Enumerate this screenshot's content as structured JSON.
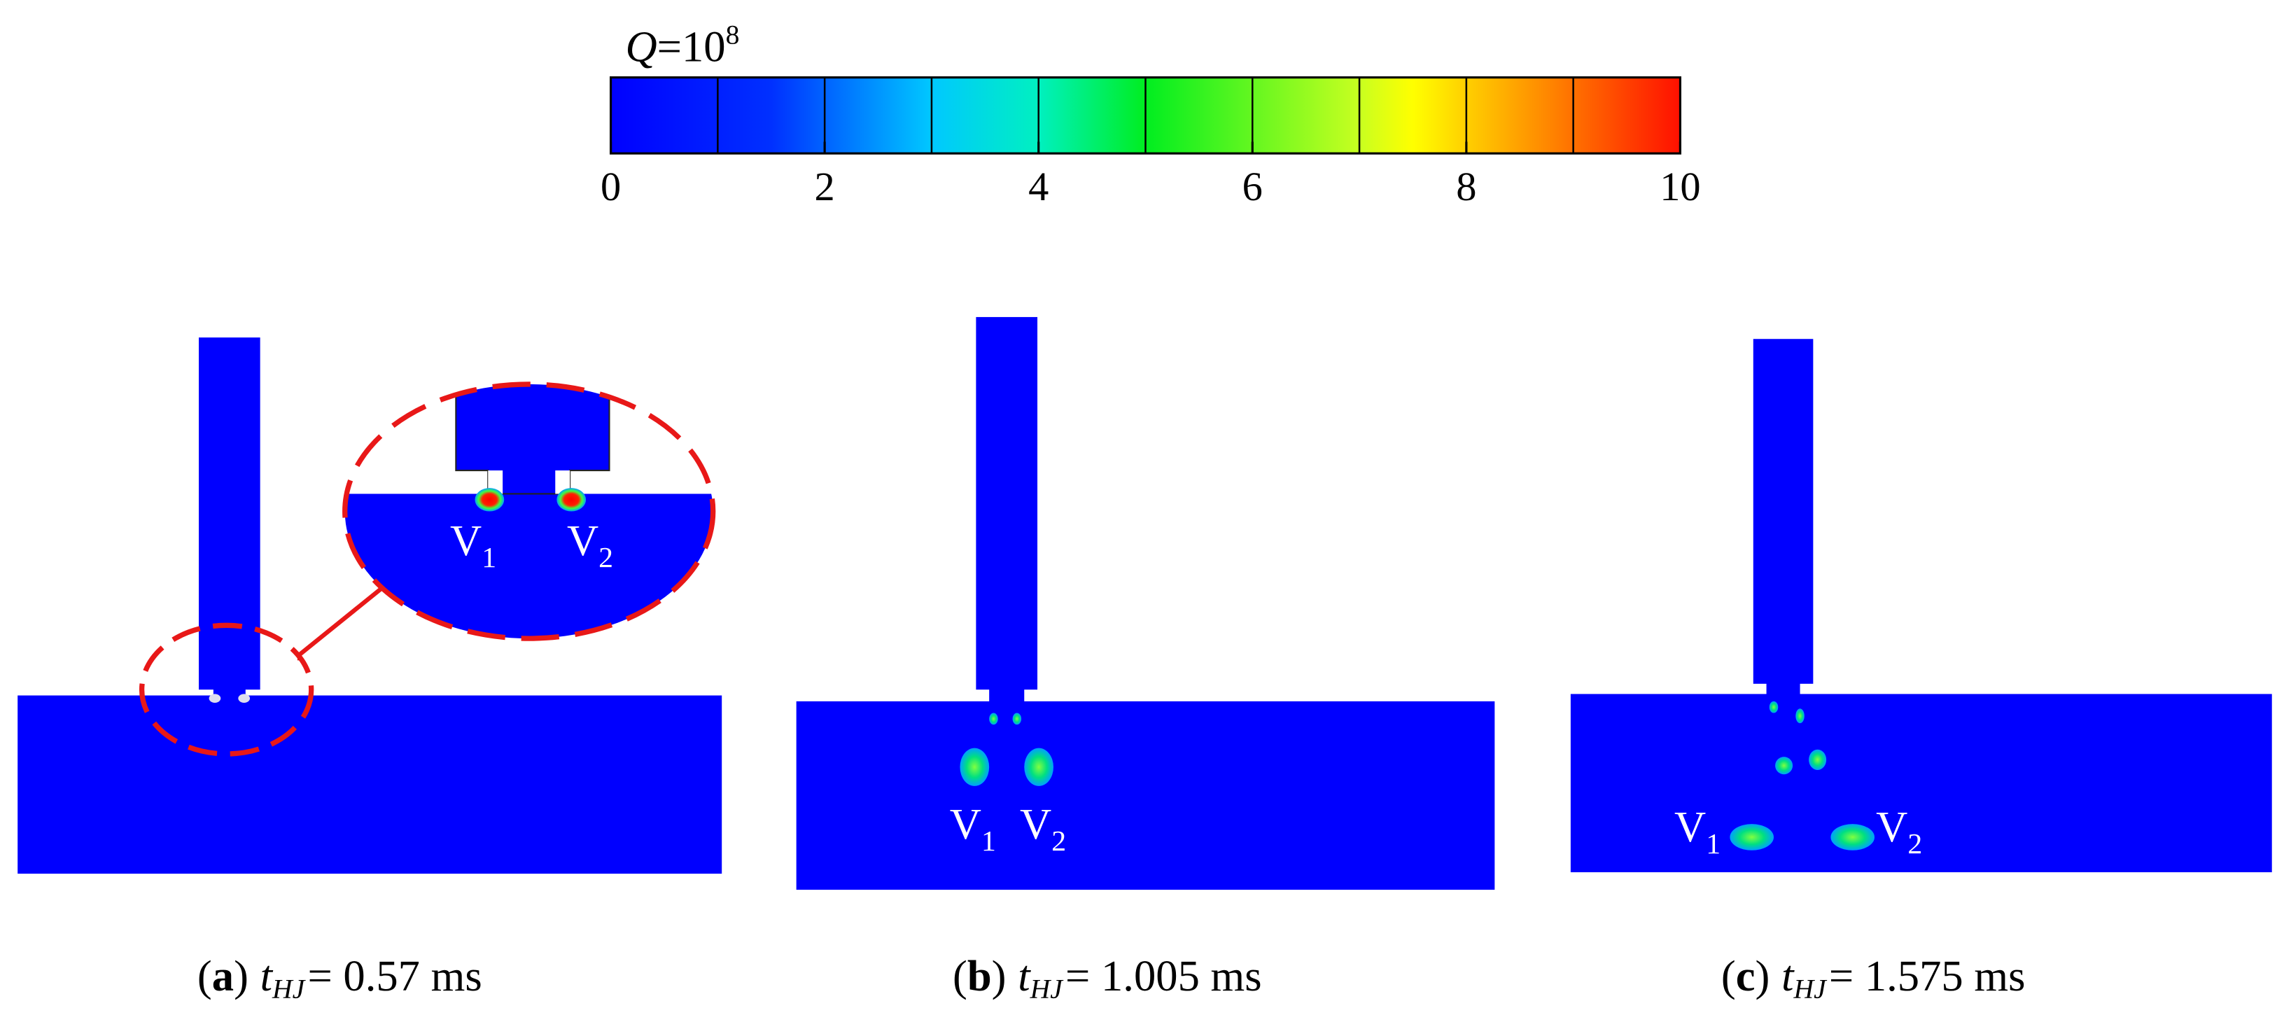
{
  "colorbar": {
    "label": {
      "symbol": "Q",
      "text": "=10",
      "exponent": "8"
    },
    "lim": [
      0,
      10
    ],
    "ticks": [
      0,
      2,
      4,
      6,
      8,
      10
    ]
  },
  "panels": [
    {
      "caption": [
        "(",
        "a",
        ")",
        "t",
        "HJ",
        "= 0.57 ms"
      ],
      "vortices": [
        {
          "letter": "V",
          "sub": "1"
        },
        {
          "letter": "V",
          "sub": "2"
        }
      ]
    },
    {
      "caption": [
        "(",
        "b",
        ")",
        "t",
        "HJ",
        "= 1.005 ms"
      ],
      "vortices": [
        {
          "letter": "V",
          "sub": "1"
        },
        {
          "letter": "V",
          "sub": "2"
        }
      ]
    },
    {
      "caption": [
        "(",
        "c",
        ")",
        "t",
        "HJ",
        "= 1.575 ms"
      ],
      "vortices": [
        {
          "letter": "V",
          "sub": "1"
        },
        {
          "letter": "V",
          "sub": "2"
        }
      ]
    }
  ]
}
